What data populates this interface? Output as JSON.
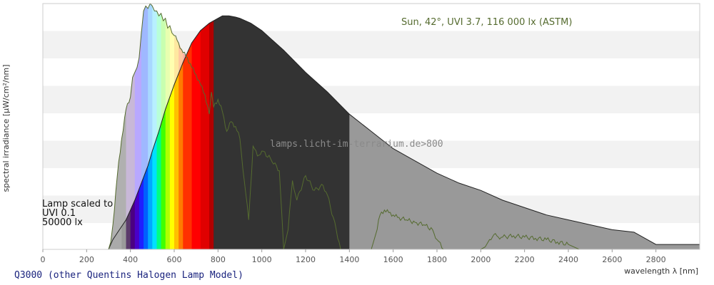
{
  "chart_data": {
    "type": "area",
    "title": "",
    "ylabel": "spectral irradiance [µW/cm²/nm]",
    "xlabel": "wavelength λ [nm]",
    "xlim": [
      0,
      3000
    ],
    "ylim": [
      0,
      100
    ],
    "x_ticks": [
      "0",
      "200",
      "400",
      "600",
      "800",
      "1000",
      "1200",
      "1400",
      "1600",
      "1800",
      "2000",
      "2200",
      "2400",
      "2600",
      "2800"
    ],
    "grid": "horizontal bands",
    "legend": "none",
    "caption": "Q3000 (other Quentins Halogen Lamp Model)",
    "watermark": "lamps.licht-im-terrarium.de>800",
    "series": [
      {
        "name": "Lamp scaled to",
        "label_lines": [
          "Lamp scaled to",
          "UVI 0.1",
          "50000 lx"
        ],
        "color": "#333333",
        "overflow_color": "#999999",
        "x": [
          300,
          320,
          350,
          380,
          400,
          420,
          450,
          480,
          500,
          530,
          560,
          600,
          640,
          680,
          720,
          760,
          800,
          820,
          850,
          880,
          900,
          950,
          1000,
          1050,
          1100,
          1200,
          1300,
          1400,
          1500,
          1600,
          1700,
          1800,
          1900,
          2000,
          2100,
          2200,
          2300,
          2400,
          2500,
          2600,
          2700,
          2800,
          2900,
          3000
        ],
        "y": [
          0,
          4,
          8,
          12,
          16,
          20,
          27,
          34,
          40,
          48,
          57,
          67,
          76,
          84,
          89,
          92,
          94,
          95,
          95,
          94.5,
          94,
          92,
          89,
          85,
          81,
          72,
          64,
          55,
          48,
          41,
          36,
          31,
          27,
          24,
          20,
          17,
          14,
          12,
          10,
          8,
          7,
          2,
          2,
          2
        ]
      },
      {
        "name": "Sun, 42°, UVI 3.7, 116 000 lx (ASTM)",
        "color": "#556b2f",
        "x": [
          300,
          310,
          320,
          340,
          360,
          380,
          400,
          410,
          420,
          430,
          440,
          450,
          460,
          470,
          480,
          490,
          500,
          510,
          520,
          530,
          540,
          550,
          560,
          570,
          580,
          590,
          600,
          620,
          640,
          660,
          680,
          700,
          720,
          740,
          760,
          770,
          780,
          800,
          820,
          840,
          860,
          880,
          900,
          920,
          940,
          960,
          980,
          1000,
          1040,
          1080,
          1100,
          1120,
          1140,
          1160,
          1200,
          1240,
          1280,
          1300,
          1340,
          1360,
          1380,
          1400,
          1440,
          1500,
          1520,
          1540,
          1560,
          1580,
          1600,
          1620,
          1660,
          1700,
          1740,
          1780,
          1800,
          1830,
          1860,
          1900,
          1950,
          2000,
          2020,
          2040,
          2060,
          2080,
          2100,
          2150,
          2200,
          2250,
          2300,
          2350,
          2400,
          2450,
          2500,
          2600,
          2700,
          2800,
          2900,
          3000
        ],
        "y": [
          0,
          3,
          10,
          30,
          45,
          57,
          62,
          70,
          72,
          74,
          78,
          88,
          97,
          99,
          98,
          100,
          99,
          97,
          97,
          95,
          96,
          93,
          94,
          90,
          91,
          88,
          87,
          84,
          80,
          78,
          74,
          71,
          67,
          63,
          55,
          64,
          58,
          61,
          56,
          48,
          52,
          50,
          45,
          28,
          12,
          42,
          38,
          40,
          37,
          32,
          0,
          8,
          28,
          20,
          30,
          24,
          26,
          22,
          8,
          0,
          0,
          0,
          0,
          0,
          6,
          14,
          16,
          15,
          14,
          13,
          12,
          11,
          10,
          8,
          4,
          0,
          0,
          0,
          0,
          0,
          1,
          4,
          6,
          5,
          5,
          5.5,
          5,
          4.5,
          4,
          3,
          2,
          0,
          0,
          0,
          0,
          0,
          0,
          0
        ]
      }
    ]
  }
}
